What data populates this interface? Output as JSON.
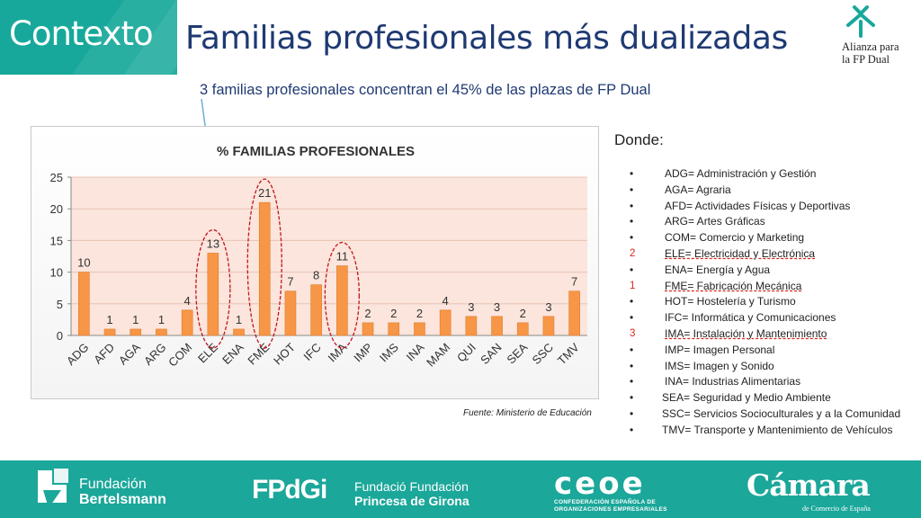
{
  "header": {
    "tag": "Contexto",
    "title": "Familias profesionales más dualizadas",
    "subtitle": "3 familias profesionales concentran el 45% de las plazas de FP Dual",
    "logo_line1": "Alianza para",
    "logo_line2": "la FP Dual"
  },
  "chart_data": {
    "type": "bar",
    "title": "% FAMILIAS PROFESIONALES",
    "xlabel": "",
    "ylabel": "",
    "categories": [
      "ADG",
      "AFD",
      "AGA",
      "ARG",
      "COM",
      "ELE",
      "ENA",
      "FME",
      "HOT",
      "IFC",
      "IMA",
      "IMP",
      "IMS",
      "INA",
      "MAM",
      "QUI",
      "SAN",
      "SEA",
      "SSC",
      "TMV"
    ],
    "values": [
      10,
      1,
      1,
      1,
      4,
      13,
      1,
      21,
      7,
      8,
      11,
      2,
      2,
      2,
      4,
      3,
      3,
      2,
      3,
      7
    ],
    "ylim": [
      0,
      25
    ],
    "yticks": [
      "0",
      "5",
      "10",
      "15",
      "20",
      "25"
    ],
    "highlighted": [
      "ELE",
      "FME",
      "IMA"
    ],
    "grid": true,
    "bar_color": "#f79646",
    "plot_bg": "#fbe5dc"
  },
  "source": "Fuente: Ministerio de Educación",
  "legend": {
    "heading": "Donde:",
    "items": [
      {
        "marker": "•",
        "text": "ADG= Administración y Gestión"
      },
      {
        "marker": "•",
        "text": "AGA= Agraria"
      },
      {
        "marker": "•",
        "text": "AFD= Actividades Físicas y Deportivas"
      },
      {
        "marker": "•",
        "text": "ARG= Artes Gráficas"
      },
      {
        "marker": "•",
        "text": "COM= Comercio y Marketing"
      },
      {
        "marker": "2",
        "text": "ELE= Electricidad y Electrónica",
        "rank": true
      },
      {
        "marker": "•",
        "text": "ENA= Energía y Agua"
      },
      {
        "marker": "1",
        "text": "FME= Fabricación Mecánica",
        "rank": true
      },
      {
        "marker": "•",
        "text": "HOT= Hostelería y Turismo"
      },
      {
        "marker": "•",
        "text": "IFC= Informática y Comunicaciones"
      },
      {
        "marker": "3",
        "text": "IMA= Instalación y Mantenimiento",
        "rank": true
      },
      {
        "marker": "•",
        "text": "IMP= Imagen Personal"
      },
      {
        "marker": "•",
        "text": "IMS= Imagen y Sonido"
      },
      {
        "marker": "•",
        "text": "INA= Industrias Alimentarias"
      },
      {
        "marker": "•",
        "text": "SEA= Seguridad y Medio Ambiente",
        "mid": true
      },
      {
        "marker": "•",
        "text": "SSC= Servicios Socioculturales y a la Comunidad",
        "mid": true
      },
      {
        "marker": "•",
        "text": "TMV= Transporte y Mantenimiento de Vehículos",
        "mid": true
      }
    ]
  },
  "footer": {
    "fb_line1": "Fundación",
    "fb_line2": "Bertelsmann",
    "fpdgi_big": "FPdGi",
    "fpdgi_line1": "Fundació Fundación",
    "fpdgi_line2": "Princesa de Girona",
    "ceoe_mark": "ceoe",
    "ceoe_line1": "CONFEDERACIÓN ESPAÑOLA DE",
    "ceoe_line2": "ORGANIZACIONES EMPRESARIALES",
    "camara_big": "Cámara",
    "camara_sub": "de Comercio de España"
  },
  "colors": {
    "teal": "#17a89b",
    "title_blue": "#1f3a73",
    "bar": "#f79646",
    "highlight_ring": "#c0161b"
  }
}
